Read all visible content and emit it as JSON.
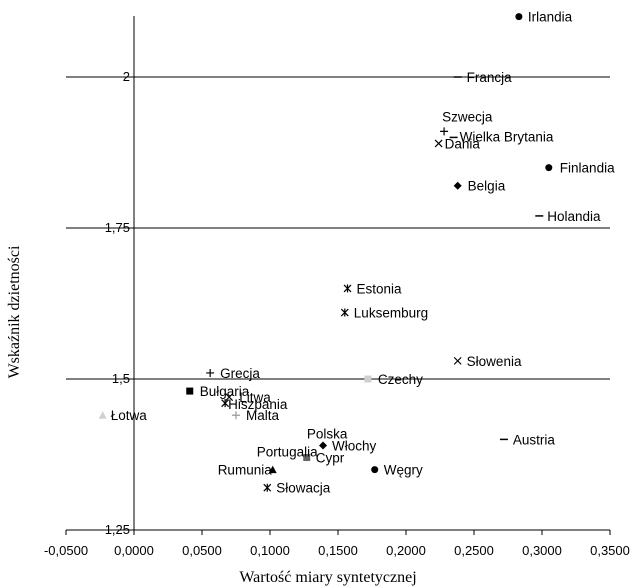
{
  "chart_data": {
    "type": "scatter",
    "xlabel": "Wartość miary syntetycznej",
    "ylabel": "Wskaźnik dzietności",
    "xlim": [
      -0.05,
      0.35
    ],
    "ylim": [
      1.25,
      2.1
    ],
    "xticks": [
      "-0,0500",
      "0,0000",
      "0,0500",
      "0,1000",
      "0,1500",
      "0,2000",
      "0,2500",
      "0,3000",
      "0,3500"
    ],
    "yticks": [
      "1,25",
      "1,5",
      "1,75",
      "2"
    ],
    "grid": "horizontal",
    "points": [
      {
        "label": "Irlandia",
        "x": 0.283,
        "y": 2.1,
        "marker": "circle"
      },
      {
        "label": "Francja",
        "x": 0.238,
        "y": 2.0,
        "marker": "dash"
      },
      {
        "label": "Szwecja",
        "x": 0.228,
        "y": 1.91,
        "marker": "plus"
      },
      {
        "label": "Wielka Brytania",
        "x": 0.235,
        "y": 1.9,
        "marker": "dash"
      },
      {
        "label": "Dania",
        "x": 0.224,
        "y": 1.89,
        "marker": "cross"
      },
      {
        "label": "Finlandia",
        "x": 0.305,
        "y": 1.85,
        "marker": "circle"
      },
      {
        "label": "Belgia",
        "x": 0.238,
        "y": 1.82,
        "marker": "diamond"
      },
      {
        "label": "Holandia",
        "x": 0.298,
        "y": 1.77,
        "marker": "dash"
      },
      {
        "label": "Estonia",
        "x": 0.157,
        "y": 1.65,
        "marker": "star"
      },
      {
        "label": "Luksemburg",
        "x": 0.155,
        "y": 1.61,
        "marker": "star"
      },
      {
        "label": "Słowenia",
        "x": 0.238,
        "y": 1.53,
        "marker": "cross"
      },
      {
        "label": "Grecja",
        "x": 0.056,
        "y": 1.51,
        "marker": "plus"
      },
      {
        "label": "Czechy",
        "x": 0.172,
        "y": 1.5,
        "marker": "square-light"
      },
      {
        "label": "Bułgaria",
        "x": 0.041,
        "y": 1.48,
        "marker": "square"
      },
      {
        "label": "Litwa",
        "x": 0.07,
        "y": 1.47,
        "marker": "cross"
      },
      {
        "label": "Hiszpania",
        "x": 0.067,
        "y": 1.46,
        "marker": "star"
      },
      {
        "label": "Malta",
        "x": 0.075,
        "y": 1.44,
        "marker": "plus-light"
      },
      {
        "label": "Łotwa",
        "x": -0.023,
        "y": 1.44,
        "marker": "triangle-light"
      },
      {
        "label": "Polska",
        "x": 0.142,
        "y": 1.41,
        "marker": "none"
      },
      {
        "label": "Austria",
        "x": 0.272,
        "y": 1.4,
        "marker": "dash"
      },
      {
        "label": "Włochy",
        "x": 0.139,
        "y": 1.39,
        "marker": "diamond"
      },
      {
        "label": "Portugalia",
        "x": 0.135,
        "y": 1.38,
        "marker": "none"
      },
      {
        "label": "Cypr",
        "x": 0.127,
        "y": 1.37,
        "marker": "square-gray"
      },
      {
        "label": "Rumunia",
        "x": 0.102,
        "y": 1.35,
        "marker": "triangle"
      },
      {
        "label": "Węgry",
        "x": 0.177,
        "y": 1.35,
        "marker": "circle"
      },
      {
        "label": "Słowacja",
        "x": 0.098,
        "y": 1.32,
        "marker": "star"
      }
    ]
  }
}
